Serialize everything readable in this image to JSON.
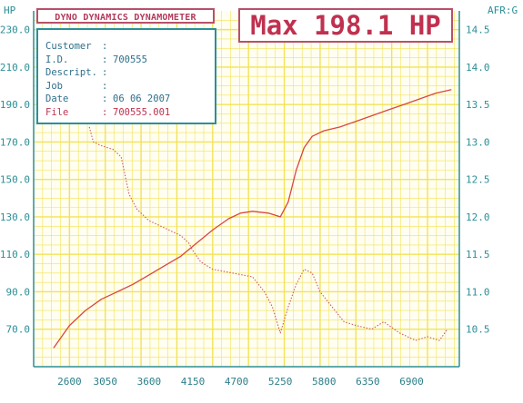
{
  "header": {
    "brand": "DYNO DYNAMICS DYNAMOMETER",
    "max_label": "Max 198.1 HP"
  },
  "info": {
    "rows": [
      {
        "label": "Customer",
        "value": ""
      },
      {
        "label": "I.D.",
        "value": "700555"
      },
      {
        "label": "Descript.",
        "value": ""
      },
      {
        "label": "Job",
        "value": ""
      },
      {
        "label": "Date",
        "value": "06 06 2007"
      },
      {
        "label": "File",
        "value": "700555.001"
      }
    ]
  },
  "colors": {
    "grid": "#f2e25a",
    "axis": "#2c8f96",
    "hp_line": "#d9473e",
    "afr_line": "#c85a6a",
    "accent": "#c0314f"
  },
  "chart_data": {
    "type": "line",
    "title": "Max 198.1 HP",
    "xlabel": "",
    "ylabel": "HP",
    "y2label": "AFR:G",
    "xlim": [
      2150,
      7500
    ],
    "ylim": [
      50,
      240
    ],
    "y2lim": [
      10.0,
      14.75
    ],
    "xticks": [
      2600,
      3050,
      3600,
      4150,
      4700,
      5250,
      5800,
      6350,
      6900
    ],
    "yticks": [
      70.0,
      90.0,
      110.0,
      130.0,
      150.0,
      170.0,
      190.0,
      210.0,
      230.0
    ],
    "y2ticks": [
      10.5,
      11.0,
      11.5,
      12.0,
      12.5,
      13.0,
      13.5,
      14.0,
      14.5
    ],
    "grid": true,
    "series": [
      {
        "name": "HP",
        "axis": "left",
        "style": "solid",
        "x": [
          2400,
          2600,
          2800,
          3000,
          3200,
          3400,
          3600,
          3800,
          4000,
          4200,
          4400,
          4600,
          4750,
          4900,
          5100,
          5250,
          5350,
          5450,
          5550,
          5650,
          5800,
          6000,
          6200,
          6400,
          6600,
          6800,
          7000,
          7200,
          7400
        ],
        "y": [
          60,
          72,
          80,
          86,
          90,
          94,
          99,
          104,
          109,
          116,
          123,
          129,
          132,
          133,
          132,
          130,
          138,
          155,
          167,
          173,
          176,
          178,
          181,
          184,
          187,
          190,
          193,
          196,
          198
        ]
      },
      {
        "name": "AFR",
        "axis": "right",
        "style": "dotted",
        "x": [
          2850,
          2900,
          3000,
          3150,
          3250,
          3350,
          3450,
          3600,
          3800,
          4000,
          4100,
          4150,
          4250,
          4400,
          4650,
          4900,
          5050,
          5150,
          5250,
          5350,
          5450,
          5550,
          5650,
          5750,
          5900,
          6050,
          6200,
          6400,
          6550,
          6750,
          6950,
          7100,
          7250,
          7350
        ],
        "y": [
          13.2,
          13.0,
          12.95,
          12.9,
          12.8,
          12.3,
          12.1,
          11.95,
          11.85,
          11.75,
          11.65,
          11.55,
          11.4,
          11.3,
          11.25,
          11.2,
          11.0,
          10.8,
          10.45,
          10.8,
          11.1,
          11.3,
          11.25,
          11.0,
          10.8,
          10.6,
          10.55,
          10.5,
          10.6,
          10.45,
          10.35,
          10.4,
          10.35,
          10.5
        ]
      }
    ]
  }
}
